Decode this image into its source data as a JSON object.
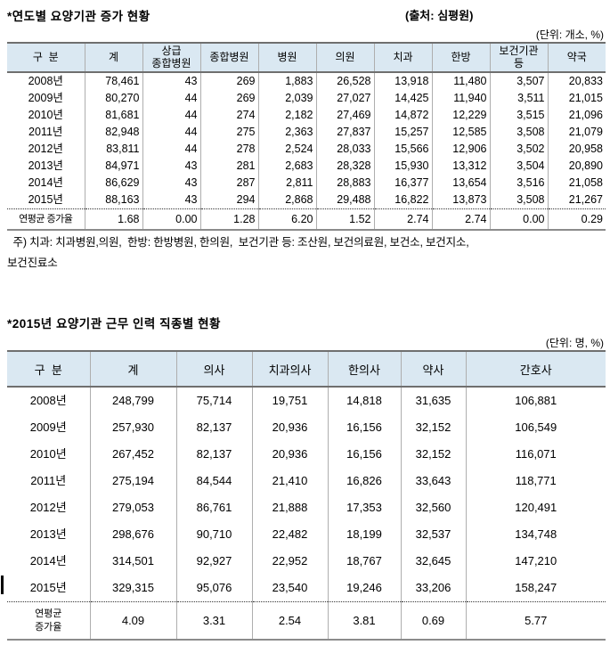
{
  "colors": {
    "header_bg": "#dae8f2",
    "border_dark": "#6f6f6f",
    "border_light": "#aeaeae",
    "text": "#000000"
  },
  "table1": {
    "title": "*연도별 요양기관 증가 현황",
    "source": "(출처: 심평원)",
    "unit": "(단위: 개소, %)",
    "headers": [
      "구  분",
      "계",
      "상급\n종합병원",
      "종합병원",
      "병원",
      "의원",
      "치과",
      "한방",
      "보건기관\n등",
      "약국"
    ],
    "rows": [
      [
        "2008년",
        "78,461",
        "43",
        "269",
        "1,883",
        "26,528",
        "13,918",
        "11,480",
        "3,507",
        "20,833"
      ],
      [
        "2009년",
        "80,270",
        "44",
        "269",
        "2,039",
        "27,027",
        "14,425",
        "11,940",
        "3,511",
        "21,015"
      ],
      [
        "2010년",
        "81,681",
        "44",
        "274",
        "2,182",
        "27,469",
        "14,872",
        "12,229",
        "3,515",
        "21,096"
      ],
      [
        "2011년",
        "82,948",
        "44",
        "275",
        "2,363",
        "27,837",
        "15,257",
        "12,585",
        "3,508",
        "21,079"
      ],
      [
        "2012년",
        "83,811",
        "44",
        "278",
        "2,524",
        "28,033",
        "15,566",
        "12,906",
        "3,502",
        "20,958"
      ],
      [
        "2013년",
        "84,971",
        "43",
        "281",
        "2,683",
        "28,328",
        "15,930",
        "13,312",
        "3,504",
        "20,890"
      ],
      [
        "2014년",
        "86,629",
        "43",
        "287",
        "2,811",
        "28,883",
        "16,377",
        "13,654",
        "3,516",
        "21,058"
      ],
      [
        "2015년",
        "88,163",
        "43",
        "294",
        "2,868",
        "29,488",
        "16,822",
        "13,873",
        "3,508",
        "21,267"
      ]
    ],
    "summary": [
      "연평균 증가율",
      "1.68",
      "0.00",
      "1.28",
      "6.20",
      "1.52",
      "2.74",
      "2.74",
      "0.00",
      "0.29"
    ],
    "footnote_line1": "  주) 치과: 치과병원,의원,  한방: 한방병원, 한의원,  보건기관 등: 조산원, 보건의료원, 보건소, 보건지소,",
    "footnote_line2": "보건진료소"
  },
  "table2": {
    "title": "*2015년 요양기관 근무 인력 직종별 현황",
    "unit": "(단위: 명, %)",
    "headers": [
      "구  분",
      "계",
      "의사",
      "치과의사",
      "한의사",
      "약사",
      "간호사"
    ],
    "rows": [
      [
        "2008년",
        "248,799",
        "75,714",
        "19,751",
        "14,818",
        "31,635",
        "106,881"
      ],
      [
        "2009년",
        "257,930",
        "82,137",
        "20,936",
        "16,156",
        "32,152",
        "106,549"
      ],
      [
        "2010년",
        "267,452",
        "82,137",
        "20,936",
        "16,156",
        "32,152",
        "116,071"
      ],
      [
        "2011년",
        "275,194",
        "84,544",
        "21,410",
        "16,826",
        "33,643",
        "118,771"
      ],
      [
        "2012년",
        "279,053",
        "86,761",
        "21,888",
        "17,353",
        "32,560",
        "120,491"
      ],
      [
        "2013년",
        "298,676",
        "90,710",
        "22,482",
        "18,199",
        "32,537",
        "134,748"
      ],
      [
        "2014년",
        "314,501",
        "92,927",
        "22,952",
        "18,767",
        "32,645",
        "147,210"
      ],
      [
        "2015년",
        "329,315",
        "95,076",
        "23,540",
        "19,246",
        "33,206",
        "158,247"
      ]
    ],
    "summary": [
      "연평균\n증가율",
      "4.09",
      "3.31",
      "2.54",
      "3.81",
      "0.69",
      "5.77"
    ]
  }
}
